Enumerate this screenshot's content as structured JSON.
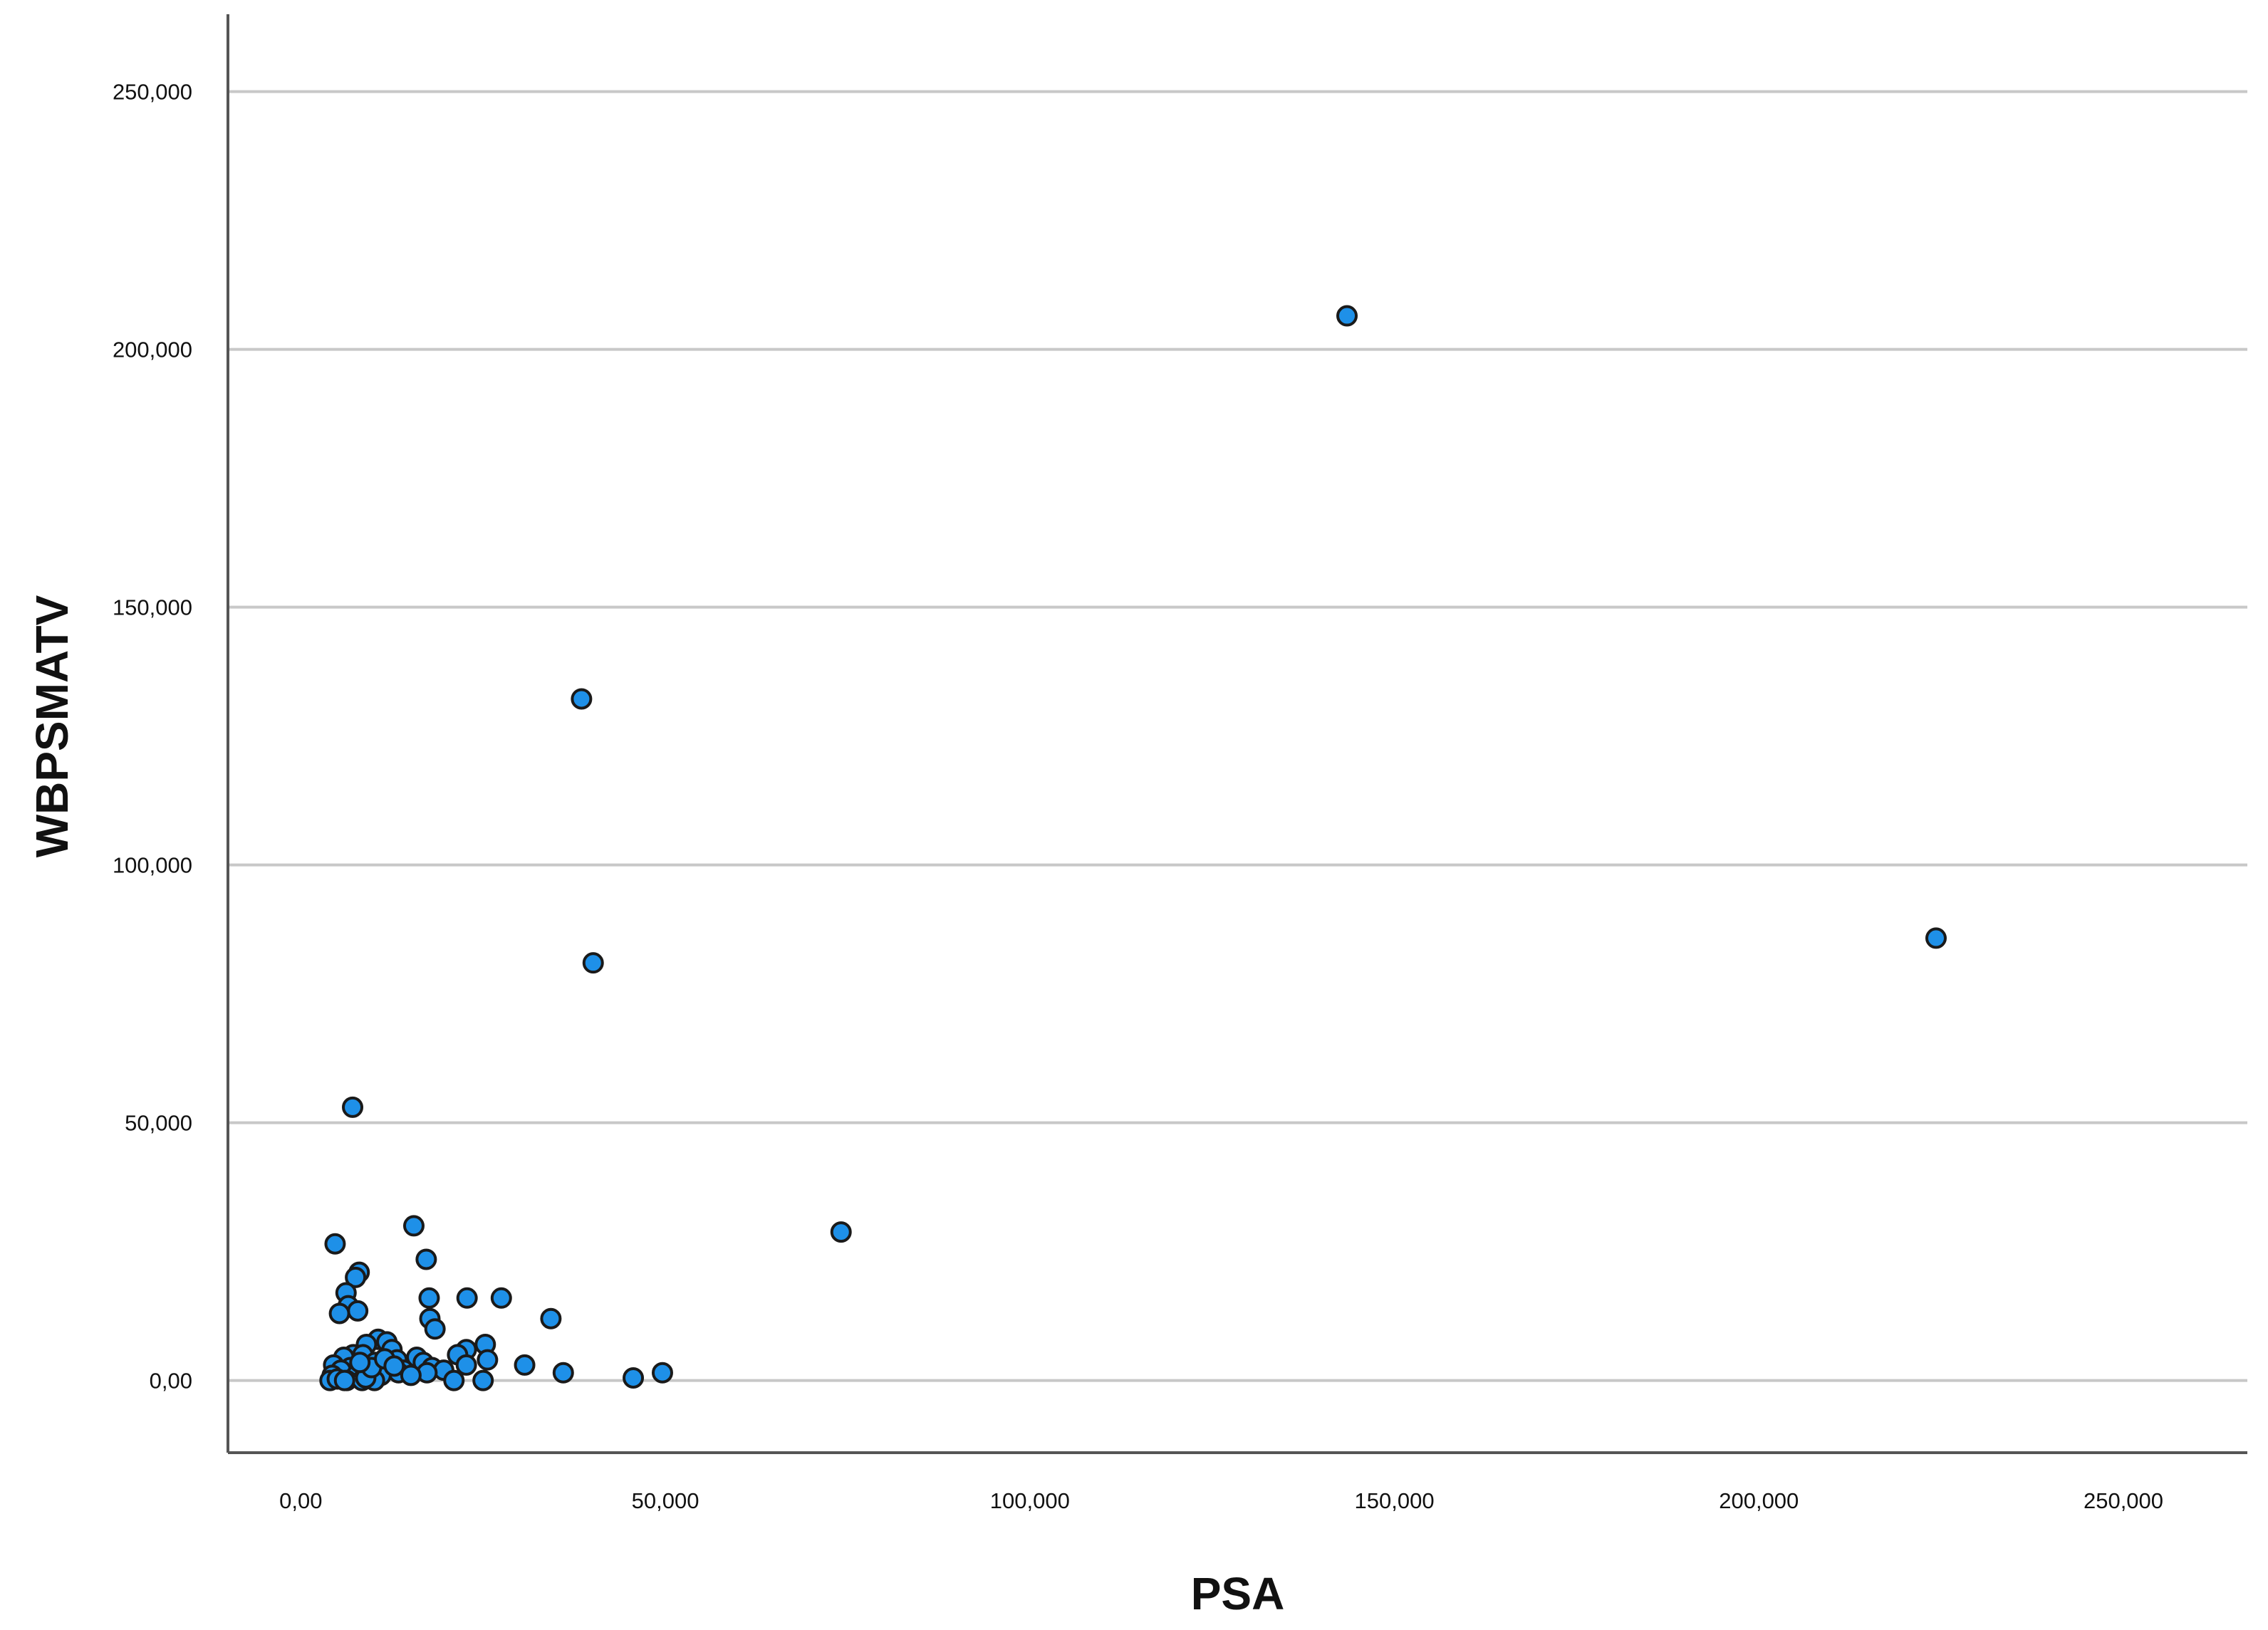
{
  "chart_data": {
    "type": "scatter",
    "title": "",
    "xlabel": "PSA",
    "ylabel": "WBPSMATV",
    "xlim": [
      -10,
      267
    ],
    "ylim": [
      -14,
      265
    ],
    "grid": "horizontal",
    "colors": {
      "marker_fill": "#1E90E8",
      "marker_stroke": "#1a1a1a",
      "grid": "#c8c8c8",
      "axis": "#555555"
    },
    "x_ticks": [
      {
        "value": 0,
        "label": "0,00"
      },
      {
        "value": 50,
        "label": "50,000"
      },
      {
        "value": 100,
        "label": "100,000"
      },
      {
        "value": 150,
        "label": "150,000"
      },
      {
        "value": 200,
        "label": "200,000"
      },
      {
        "value": 250,
        "label": "250,000"
      }
    ],
    "y_ticks": [
      {
        "value": 0,
        "label": "0,00"
      },
      {
        "value": 50,
        "label": "50,000"
      },
      {
        "value": 100,
        "label": "100,000"
      },
      {
        "value": 150,
        "label": "150,000"
      },
      {
        "value": 200,
        "label": "200,000"
      },
      {
        "value": 250,
        "label": "250,000"
      }
    ],
    "points": [
      [
        143.5,
        206.5
      ],
      [
        224.3,
        85.8
      ],
      [
        38.5,
        132.2
      ],
      [
        40.1,
        81.0
      ],
      [
        74.1,
        28.8
      ],
      [
        7.1,
        53.0
      ],
      [
        15.5,
        30.0
      ],
      [
        4.7,
        26.5
      ],
      [
        17.2,
        23.5
      ],
      [
        8.0,
        21.0
      ],
      [
        7.5,
        20.0
      ],
      [
        6.2,
        17.0
      ],
      [
        17.6,
        16.0
      ],
      [
        22.8,
        16.0
      ],
      [
        27.5,
        16.0
      ],
      [
        6.5,
        14.5
      ],
      [
        7.8,
        13.5
      ],
      [
        5.3,
        13.0
      ],
      [
        17.7,
        12.0
      ],
      [
        34.3,
        12.0
      ],
      [
        18.4,
        10.0
      ],
      [
        10.6,
        8.0
      ],
      [
        11.8,
        7.5
      ],
      [
        9.0,
        7.0
      ],
      [
        25.3,
        7.0
      ],
      [
        12.5,
        6.0
      ],
      [
        22.7,
        6.0
      ],
      [
        7.2,
        5.0
      ],
      [
        21.5,
        5.0
      ],
      [
        8.5,
        5.0
      ],
      [
        15.9,
        4.5
      ],
      [
        5.9,
        4.5
      ],
      [
        13.2,
        4.0
      ],
      [
        25.6,
        4.0
      ],
      [
        10.2,
        3.5
      ],
      [
        16.8,
        3.5
      ],
      [
        30.7,
        3.0
      ],
      [
        4.5,
        3.0
      ],
      [
        12.0,
        3.0
      ],
      [
        22.7,
        3.0
      ],
      [
        6.8,
        2.5
      ],
      [
        18.0,
        2.5
      ],
      [
        9.3,
        2.0
      ],
      [
        14.1,
        2.0
      ],
      [
        19.6,
        2.0
      ],
      [
        5.5,
        2.0
      ],
      [
        36.0,
        1.5
      ],
      [
        49.6,
        1.5
      ],
      [
        10.7,
        1.5
      ],
      [
        17.3,
        1.5
      ],
      [
        13.4,
        1.5
      ],
      [
        4.3,
        1.0
      ],
      [
        7.6,
        1.0
      ],
      [
        11.0,
        1.0
      ],
      [
        15.1,
        1.0
      ],
      [
        45.6,
        0.5
      ],
      [
        21.0,
        0.0
      ],
      [
        25.0,
        0.0
      ],
      [
        4.0,
        0.0
      ],
      [
        6.3,
        0.0
      ],
      [
        8.4,
        0.0
      ],
      [
        10.1,
        0.0
      ],
      [
        5.0,
        0.3
      ],
      [
        8.9,
        0.5
      ],
      [
        6.0,
        0.0
      ],
      [
        9.7,
        2.5
      ],
      [
        8.1,
        3.5
      ],
      [
        11.5,
        4.2
      ],
      [
        12.8,
        2.8
      ]
    ]
  }
}
